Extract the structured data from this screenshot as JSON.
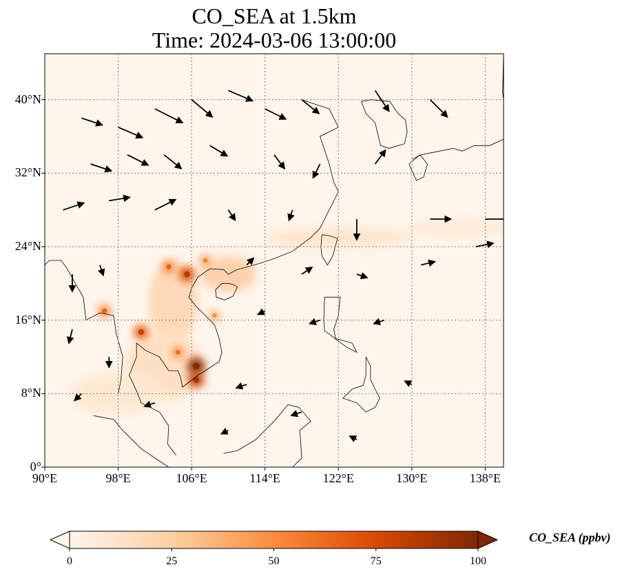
{
  "figure": {
    "title_line1": "CO_SEA at 1.5km",
    "title_line2": "Time: 2024-03-06 13:00:00"
  },
  "map": {
    "lon_range": [
      90,
      140
    ],
    "lat_range": [
      0,
      45
    ],
    "lon_ticks": [
      90,
      98,
      106,
      114,
      122,
      130,
      138
    ],
    "lat_ticks": [
      0,
      8,
      16,
      24,
      32,
      40
    ],
    "lon_tick_labels": [
      "90°E",
      "98°E",
      "106°E",
      "114°E",
      "122°E",
      "130°E",
      "138°E"
    ],
    "lat_tick_labels": [
      "0°",
      "8°N",
      "16°N",
      "24°N",
      "32°N",
      "40°N"
    ],
    "gridlines": true,
    "background_color": "#fff5eb",
    "hotspots": [
      {
        "lon": 105.5,
        "lat": 21.0,
        "value": 75
      },
      {
        "lon": 103.5,
        "lat": 21.8,
        "value": 55
      },
      {
        "lon": 107.5,
        "lat": 22.5,
        "value": 45
      },
      {
        "lon": 106.5,
        "lat": 11.0,
        "value": 95
      },
      {
        "lon": 106.5,
        "lat": 9.5,
        "value": 80
      },
      {
        "lon": 104.5,
        "lat": 12.5,
        "value": 50
      },
      {
        "lon": 100.5,
        "lat": 14.7,
        "value": 70
      },
      {
        "lon": 96.5,
        "lat": 17.0,
        "value": 55
      },
      {
        "lon": 108.5,
        "lat": 16.5,
        "value": 40
      }
    ],
    "wind_arrows": [
      {
        "lon": 94,
        "lat": 38,
        "u": 6,
        "v": -2
      },
      {
        "lon": 98,
        "lat": 37,
        "u": 7,
        "v": -3
      },
      {
        "lon": 102,
        "lat": 39,
        "u": 8,
        "v": -4
      },
      {
        "lon": 106,
        "lat": 40,
        "u": 6,
        "v": -5
      },
      {
        "lon": 110,
        "lat": 41,
        "u": 7,
        "v": -3
      },
      {
        "lon": 114,
        "lat": 39,
        "u": 6,
        "v": -3
      },
      {
        "lon": 118,
        "lat": 40,
        "u": 5,
        "v": -4
      },
      {
        "lon": 126,
        "lat": 41,
        "u": 4,
        "v": -6
      },
      {
        "lon": 132,
        "lat": 40,
        "u": 5,
        "v": -5
      },
      {
        "lon": 95,
        "lat": 33,
        "u": 6,
        "v": -2
      },
      {
        "lon": 99,
        "lat": 34,
        "u": 6,
        "v": -3
      },
      {
        "lon": 103,
        "lat": 34,
        "u": 5,
        "v": -4
      },
      {
        "lon": 108,
        "lat": 35,
        "u": 5,
        "v": -3
      },
      {
        "lon": 115,
        "lat": 34,
        "u": 3,
        "v": -4
      },
      {
        "lon": 120,
        "lat": 33,
        "u": -2,
        "v": -4
      },
      {
        "lon": 126,
        "lat": 33,
        "u": 3,
        "v": 4
      },
      {
        "lon": 92,
        "lat": 28,
        "u": 6,
        "v": 2
      },
      {
        "lon": 97,
        "lat": 29,
        "u": 6,
        "v": 1
      },
      {
        "lon": 102,
        "lat": 28,
        "u": 6,
        "v": 3
      },
      {
        "lon": 110,
        "lat": 28,
        "u": 2,
        "v": -3
      },
      {
        "lon": 117,
        "lat": 28,
        "u": -1,
        "v": -3
      },
      {
        "lon": 124,
        "lat": 27,
        "u": 0,
        "v": -6
      },
      {
        "lon": 132,
        "lat": 27,
        "u": 6,
        "v": 0
      },
      {
        "lon": 138,
        "lat": 27,
        "u": 7,
        "v": 0
      },
      {
        "lon": 93,
        "lat": 21,
        "u": 0,
        "v": -5
      },
      {
        "lon": 96,
        "lat": 22,
        "u": 1,
        "v": -3
      },
      {
        "lon": 112,
        "lat": 22,
        "u": 2,
        "v": 2
      },
      {
        "lon": 118,
        "lat": 21,
        "u": 3,
        "v": 2
      },
      {
        "lon": 124,
        "lat": 21,
        "u": 3,
        "v": -1
      },
      {
        "lon": 131,
        "lat": 22,
        "u": 4,
        "v": 1
      },
      {
        "lon": 137,
        "lat": 24,
        "u": 5,
        "v": 1
      },
      {
        "lon": 93,
        "lat": 15,
        "u": -1,
        "v": -4
      },
      {
        "lon": 97,
        "lat": 12,
        "u": 0,
        "v": -3
      },
      {
        "lon": 114,
        "lat": 17,
        "u": -2,
        "v": -1
      },
      {
        "lon": 120,
        "lat": 16,
        "u": -3,
        "v": -1
      },
      {
        "lon": 127,
        "lat": 16,
        "u": -3,
        "v": -1
      },
      {
        "lon": 94,
        "lat": 8,
        "u": -2,
        "v": -2
      },
      {
        "lon": 102,
        "lat": 7,
        "u": -3,
        "v": -1
      },
      {
        "lon": 112,
        "lat": 9,
        "u": -3,
        "v": -1
      },
      {
        "lon": 118,
        "lat": 6,
        "u": -3,
        "v": -1
      },
      {
        "lon": 130,
        "lat": 9,
        "u": -2,
        "v": 1
      },
      {
        "lon": 110,
        "lat": 4,
        "u": -2,
        "v": -1
      },
      {
        "lon": 124,
        "lat": 3,
        "u": -2,
        "v": 1
      }
    ]
  },
  "colorbar": {
    "label": "CO_SEA (ppbv)",
    "min": 0,
    "max": 100,
    "ticks": [
      0,
      25,
      50,
      75,
      100
    ],
    "tick_labels": [
      "0",
      "25",
      "50",
      "75",
      "100"
    ],
    "extend": "both",
    "colormap_stops": [
      "#fff5eb",
      "#fdd0a2",
      "#fd8d3c",
      "#d94801",
      "#7f2704"
    ]
  }
}
